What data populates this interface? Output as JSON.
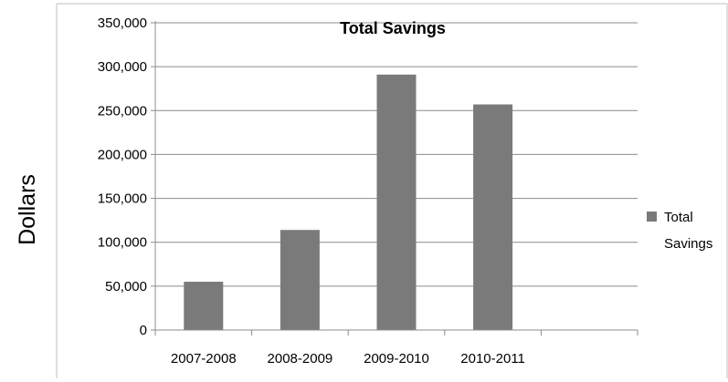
{
  "chart_data": {
    "type": "bar",
    "title": "Total Savings",
    "ylabel": "Dollars",
    "xlabel": "",
    "categories": [
      "2007-2008",
      "2008-2009",
      "2009-2010",
      "2010-2011"
    ],
    "series": [
      {
        "name": "Total Savings",
        "values": [
          55000,
          114000,
          291000,
          257000
        ],
        "color": "#7a7a7a"
      }
    ],
    "ylim": [
      0,
      350000
    ],
    "yticks": [
      0,
      50000,
      100000,
      150000,
      200000,
      250000,
      300000,
      350000
    ],
    "ytick_labels": [
      "0",
      "50,000",
      "100,000",
      "150,000",
      "200,000",
      "250,000",
      "300,000",
      "350,000"
    ],
    "grid": true,
    "legend_position": "right",
    "legend_lines": [
      "Total",
      "Savings"
    ]
  }
}
